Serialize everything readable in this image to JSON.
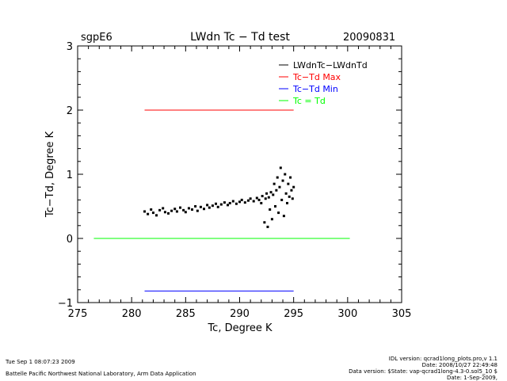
{
  "header": {
    "site": "sgpE6",
    "title": "LWdn Tc − Td test",
    "date": "20090831"
  },
  "footer": {
    "run_time": "Tue Sep  1 08:07:23 2009",
    "institution": "Battelle Pacific Northwest National Laboratory, Arm Data Application",
    "idl_version": "IDL version: qcrad1long_plots.pro,v 1.1",
    "idl_date": "Date: 2008/10/27 22:49:48",
    "data_version": "Data version: $State: vap-qcrad1long-4.3-0.sol5_10 $",
    "data_date": "Date: 1-Sep-2009,"
  },
  "chart_data": {
    "type": "scatter",
    "title": "LWdn Tc − Td test",
    "xlabel": "Tc, Degree K",
    "ylabel": "Tc−Td, Degree K",
    "xlim": [
      275,
      305
    ],
    "ylim": [
      -1,
      3
    ],
    "x_ticks": [
      275,
      280,
      285,
      290,
      295,
      300,
      305
    ],
    "y_ticks": [
      -1,
      0,
      1,
      2,
      3
    ],
    "legend_position": "top-right",
    "grid": false,
    "series": [
      {
        "name": "LWdnTc−LWdnTd",
        "color": "#000000",
        "kind": "scatter",
        "points": [
          [
            281.2,
            0.42
          ],
          [
            281.5,
            0.38
          ],
          [
            281.8,
            0.45
          ],
          [
            282.0,
            0.4
          ],
          [
            282.3,
            0.36
          ],
          [
            282.6,
            0.44
          ],
          [
            282.9,
            0.47
          ],
          [
            283.1,
            0.41
          ],
          [
            283.4,
            0.39
          ],
          [
            283.7,
            0.43
          ],
          [
            284.0,
            0.46
          ],
          [
            284.2,
            0.42
          ],
          [
            284.5,
            0.48
          ],
          [
            284.8,
            0.44
          ],
          [
            285.0,
            0.41
          ],
          [
            285.3,
            0.47
          ],
          [
            285.6,
            0.45
          ],
          [
            285.9,
            0.5
          ],
          [
            286.1,
            0.43
          ],
          [
            286.4,
            0.49
          ],
          [
            286.7,
            0.46
          ],
          [
            287.0,
            0.52
          ],
          [
            287.2,
            0.48
          ],
          [
            287.5,
            0.51
          ],
          [
            287.8,
            0.54
          ],
          [
            288.0,
            0.49
          ],
          [
            288.3,
            0.53
          ],
          [
            288.6,
            0.56
          ],
          [
            288.9,
            0.52
          ],
          [
            289.1,
            0.55
          ],
          [
            289.4,
            0.58
          ],
          [
            289.7,
            0.54
          ],
          [
            290.0,
            0.57
          ],
          [
            290.2,
            0.6
          ],
          [
            290.5,
            0.56
          ],
          [
            290.8,
            0.59
          ],
          [
            291.0,
            0.62
          ],
          [
            291.3,
            0.58
          ],
          [
            291.6,
            0.63
          ],
          [
            291.8,
            0.6
          ],
          [
            292.0,
            0.55
          ],
          [
            292.1,
            0.66
          ],
          [
            292.3,
            0.25
          ],
          [
            292.4,
            0.62
          ],
          [
            292.5,
            0.7
          ],
          [
            292.6,
            0.18
          ],
          [
            292.7,
            0.64
          ],
          [
            292.8,
            0.45
          ],
          [
            292.9,
            0.72
          ],
          [
            293.0,
            0.3
          ],
          [
            293.1,
            0.68
          ],
          [
            293.2,
            0.85
          ],
          [
            293.3,
            0.5
          ],
          [
            293.4,
            0.75
          ],
          [
            293.5,
            0.95
          ],
          [
            293.6,
            0.4
          ],
          [
            293.7,
            0.8
          ],
          [
            293.8,
            1.1
          ],
          [
            293.9,
            0.6
          ],
          [
            294.0,
            0.9
          ],
          [
            294.1,
            0.35
          ],
          [
            294.2,
            1.0
          ],
          [
            294.3,
            0.7
          ],
          [
            294.4,
            0.55
          ],
          [
            294.5,
            0.85
          ],
          [
            294.6,
            0.65
          ],
          [
            294.7,
            0.95
          ],
          [
            294.8,
            0.75
          ],
          [
            294.9,
            0.62
          ],
          [
            295.0,
            0.8
          ]
        ]
      },
      {
        "name": "Tc−Td Max",
        "color": "#ff0000",
        "kind": "line",
        "points": [
          [
            281.2,
            2.0
          ],
          [
            295.0,
            2.0
          ]
        ]
      },
      {
        "name": "Tc−Td Min",
        "color": "#0000ff",
        "kind": "line",
        "points": [
          [
            281.2,
            -0.82
          ],
          [
            295.0,
            -0.82
          ]
        ]
      },
      {
        "name": "Tc = Td",
        "color": "#00ff00",
        "kind": "line",
        "points": [
          [
            276.5,
            0.0
          ],
          [
            300.2,
            0.0
          ]
        ]
      }
    ]
  }
}
